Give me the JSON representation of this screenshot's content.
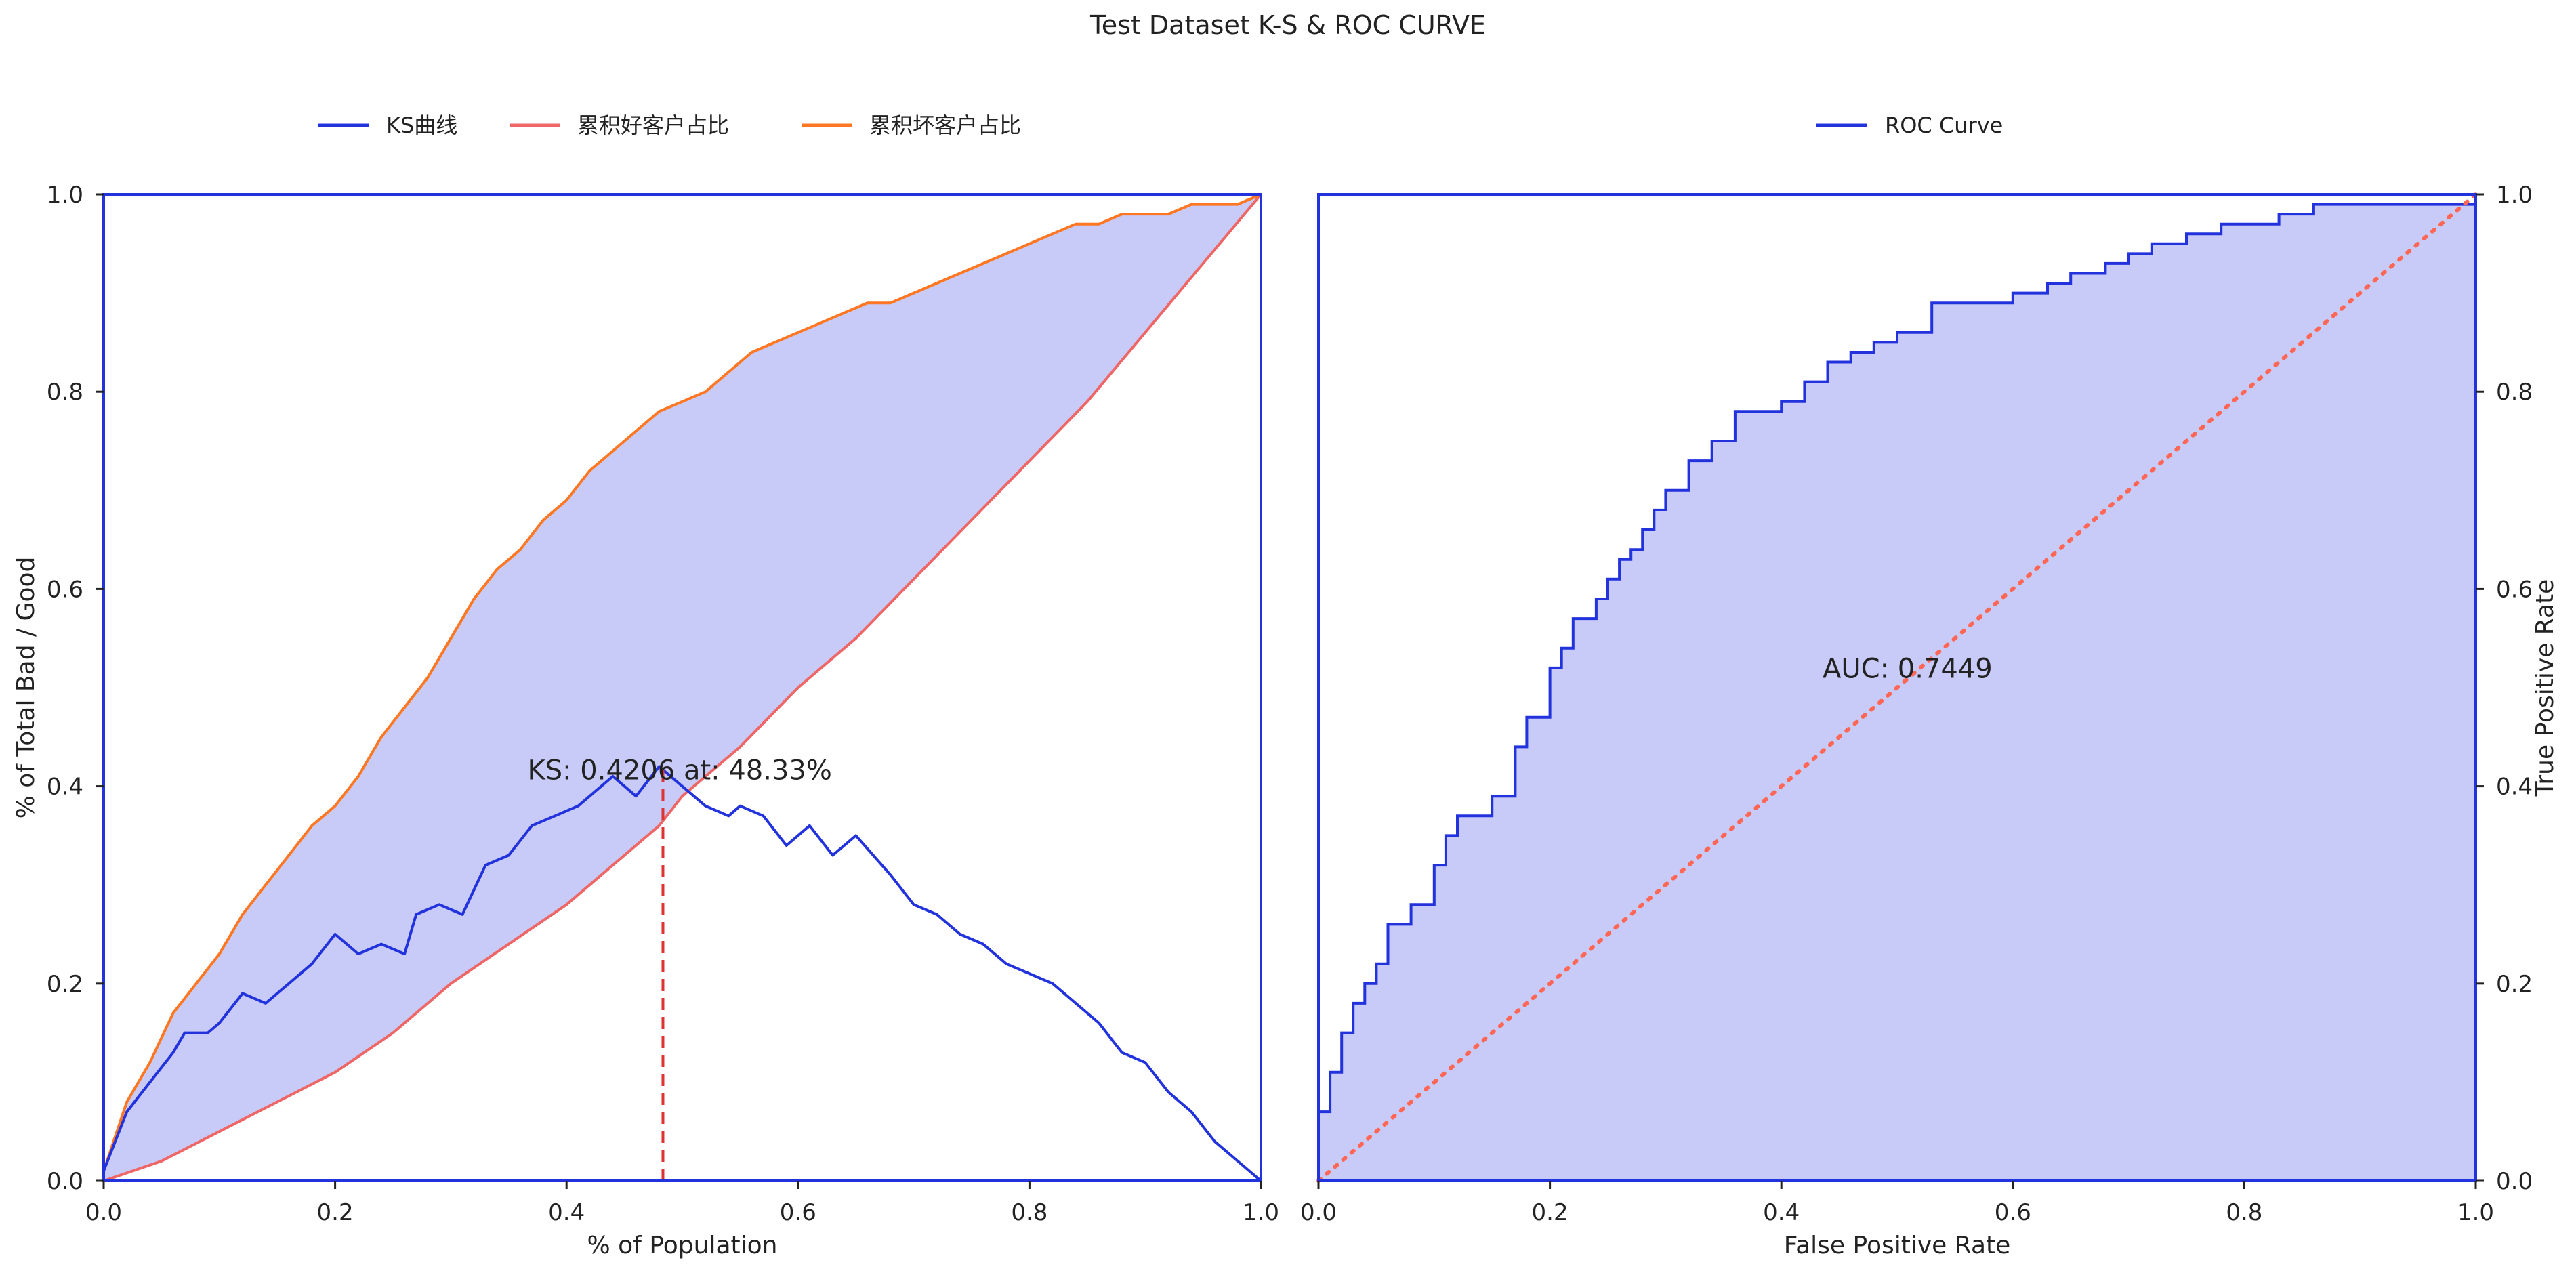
{
  "title": "Test Dataset K-S & ROC CURVE",
  "chart_data": [
    {
      "type": "line",
      "xlabel": "% of Population",
      "ylabel": "% of Total Bad / Good",
      "xlim": [
        0,
        1
      ],
      "ylim": [
        0,
        1
      ],
      "xticks": [
        "0.0",
        "0.2",
        "0.4",
        "0.6",
        "0.8",
        "1.0"
      ],
      "yticks": [
        "0.0",
        "0.2",
        "0.4",
        "0.6",
        "0.8",
        "1.0"
      ],
      "legend_position": "top-left, above plot",
      "fill_between": [
        "累积好客户占比",
        "累积坏客户占比"
      ],
      "series": [
        {
          "name": "KS曲线",
          "color": "#2233dd",
          "x": [
            0.0,
            0.02,
            0.04,
            0.06,
            0.07,
            0.09,
            0.1,
            0.12,
            0.14,
            0.16,
            0.18,
            0.2,
            0.22,
            0.24,
            0.26,
            0.27,
            0.29,
            0.31,
            0.33,
            0.35,
            0.37,
            0.39,
            0.41,
            0.44,
            0.46,
            0.48,
            0.5,
            0.52,
            0.54,
            0.55,
            0.57,
            0.59,
            0.61,
            0.63,
            0.65,
            0.68,
            0.7,
            0.72,
            0.74,
            0.76,
            0.78,
            0.8,
            0.82,
            0.84,
            0.86,
            0.88,
            0.9,
            0.92,
            0.94,
            0.96,
            0.98,
            1.0
          ],
          "y": [
            0.01,
            0.07,
            0.1,
            0.13,
            0.15,
            0.15,
            0.16,
            0.19,
            0.18,
            0.2,
            0.22,
            0.25,
            0.23,
            0.24,
            0.23,
            0.27,
            0.28,
            0.27,
            0.32,
            0.33,
            0.36,
            0.37,
            0.38,
            0.41,
            0.39,
            0.42,
            0.4,
            0.38,
            0.37,
            0.38,
            0.37,
            0.34,
            0.36,
            0.33,
            0.35,
            0.31,
            0.28,
            0.27,
            0.25,
            0.24,
            0.22,
            0.21,
            0.2,
            0.18,
            0.16,
            0.13,
            0.12,
            0.09,
            0.07,
            0.04,
            0.02,
            0.0
          ]
        },
        {
          "name": "累积好客户占比",
          "color": "#ee6666",
          "x": [
            0.0,
            0.05,
            0.1,
            0.15,
            0.2,
            0.25,
            0.3,
            0.35,
            0.4,
            0.45,
            0.48,
            0.5,
            0.55,
            0.6,
            0.65,
            0.7,
            0.75,
            0.8,
            0.85,
            0.9,
            0.95,
            1.0
          ],
          "y": [
            0.0,
            0.02,
            0.05,
            0.08,
            0.11,
            0.15,
            0.2,
            0.24,
            0.28,
            0.33,
            0.36,
            0.39,
            0.44,
            0.5,
            0.55,
            0.61,
            0.67,
            0.73,
            0.79,
            0.86,
            0.93,
            1.0
          ]
        },
        {
          "name": "累积坏客户占比",
          "color": "#ff7722",
          "x": [
            0.0,
            0.02,
            0.04,
            0.06,
            0.08,
            0.1,
            0.12,
            0.14,
            0.16,
            0.18,
            0.2,
            0.22,
            0.24,
            0.26,
            0.28,
            0.3,
            0.32,
            0.34,
            0.36,
            0.38,
            0.4,
            0.42,
            0.44,
            0.46,
            0.48,
            0.5,
            0.52,
            0.54,
            0.56,
            0.58,
            0.6,
            0.62,
            0.64,
            0.66,
            0.68,
            0.7,
            0.72,
            0.74,
            0.76,
            0.78,
            0.8,
            0.82,
            0.84,
            0.86,
            0.88,
            0.9,
            0.92,
            0.94,
            0.96,
            0.98,
            1.0
          ],
          "y": [
            0.01,
            0.08,
            0.12,
            0.17,
            0.2,
            0.23,
            0.27,
            0.3,
            0.33,
            0.36,
            0.38,
            0.41,
            0.45,
            0.48,
            0.51,
            0.55,
            0.59,
            0.62,
            0.64,
            0.67,
            0.69,
            0.72,
            0.74,
            0.76,
            0.78,
            0.79,
            0.8,
            0.82,
            0.84,
            0.85,
            0.86,
            0.87,
            0.88,
            0.89,
            0.89,
            0.9,
            0.91,
            0.92,
            0.93,
            0.94,
            0.95,
            0.96,
            0.97,
            0.97,
            0.98,
            0.98,
            0.98,
            0.99,
            0.99,
            0.99,
            1.0
          ]
        }
      ],
      "annotations": [
        {
          "text": "KS: 0.4206 at: 48.33%",
          "x": 0.4833,
          "y": 0.4206
        }
      ],
      "vline": {
        "x": 0.4833,
        "y_from": 0,
        "y_to": 0.4206,
        "color": "#dd3333",
        "style": "dashed"
      }
    },
    {
      "type": "line",
      "xlabel": "False Positive Rate",
      "ylabel": "True Positive Rate",
      "xlim": [
        0,
        1
      ],
      "ylim": [
        0,
        1
      ],
      "xticks": [
        "0.0",
        "0.2",
        "0.4",
        "0.6",
        "0.8",
        "1.0"
      ],
      "yticks": [
        "0.0",
        "0.2",
        "0.4",
        "0.6",
        "0.8",
        "1.0"
      ],
      "yaxis_side": "right",
      "legend_position": "top-center, above plot",
      "series": [
        {
          "name": "ROC Curve",
          "color": "#2233dd",
          "fill": "#c8cbf7",
          "x": [
            0.0,
            0.01,
            0.02,
            0.03,
            0.04,
            0.05,
            0.06,
            0.08,
            0.1,
            0.11,
            0.12,
            0.15,
            0.17,
            0.18,
            0.2,
            0.21,
            0.22,
            0.24,
            0.25,
            0.26,
            0.27,
            0.28,
            0.29,
            0.3,
            0.32,
            0.34,
            0.36,
            0.38,
            0.4,
            0.42,
            0.44,
            0.46,
            0.48,
            0.5,
            0.53,
            0.56,
            0.6,
            0.63,
            0.65,
            0.68,
            0.7,
            0.72,
            0.75,
            0.78,
            0.8,
            0.83,
            0.86,
            0.9,
            0.95,
            1.0
          ],
          "y": [
            0.07,
            0.11,
            0.15,
            0.18,
            0.2,
            0.22,
            0.26,
            0.28,
            0.32,
            0.35,
            0.37,
            0.39,
            0.44,
            0.47,
            0.52,
            0.54,
            0.57,
            0.59,
            0.61,
            0.63,
            0.64,
            0.66,
            0.68,
            0.7,
            0.73,
            0.75,
            0.78,
            0.78,
            0.79,
            0.81,
            0.83,
            0.84,
            0.85,
            0.86,
            0.89,
            0.89,
            0.9,
            0.91,
            0.92,
            0.93,
            0.94,
            0.95,
            0.96,
            0.97,
            0.97,
            0.98,
            0.99,
            0.99,
            0.99,
            1.0
          ]
        },
        {
          "name": "",
          "color": "#ff6655",
          "style": "dotted",
          "x": [
            0.0,
            1.0
          ],
          "y": [
            0.0,
            1.0
          ]
        }
      ],
      "annotations": [
        {
          "text": "AUC: 0.7449",
          "x": 0.5,
          "y": 0.51
        }
      ]
    }
  ]
}
